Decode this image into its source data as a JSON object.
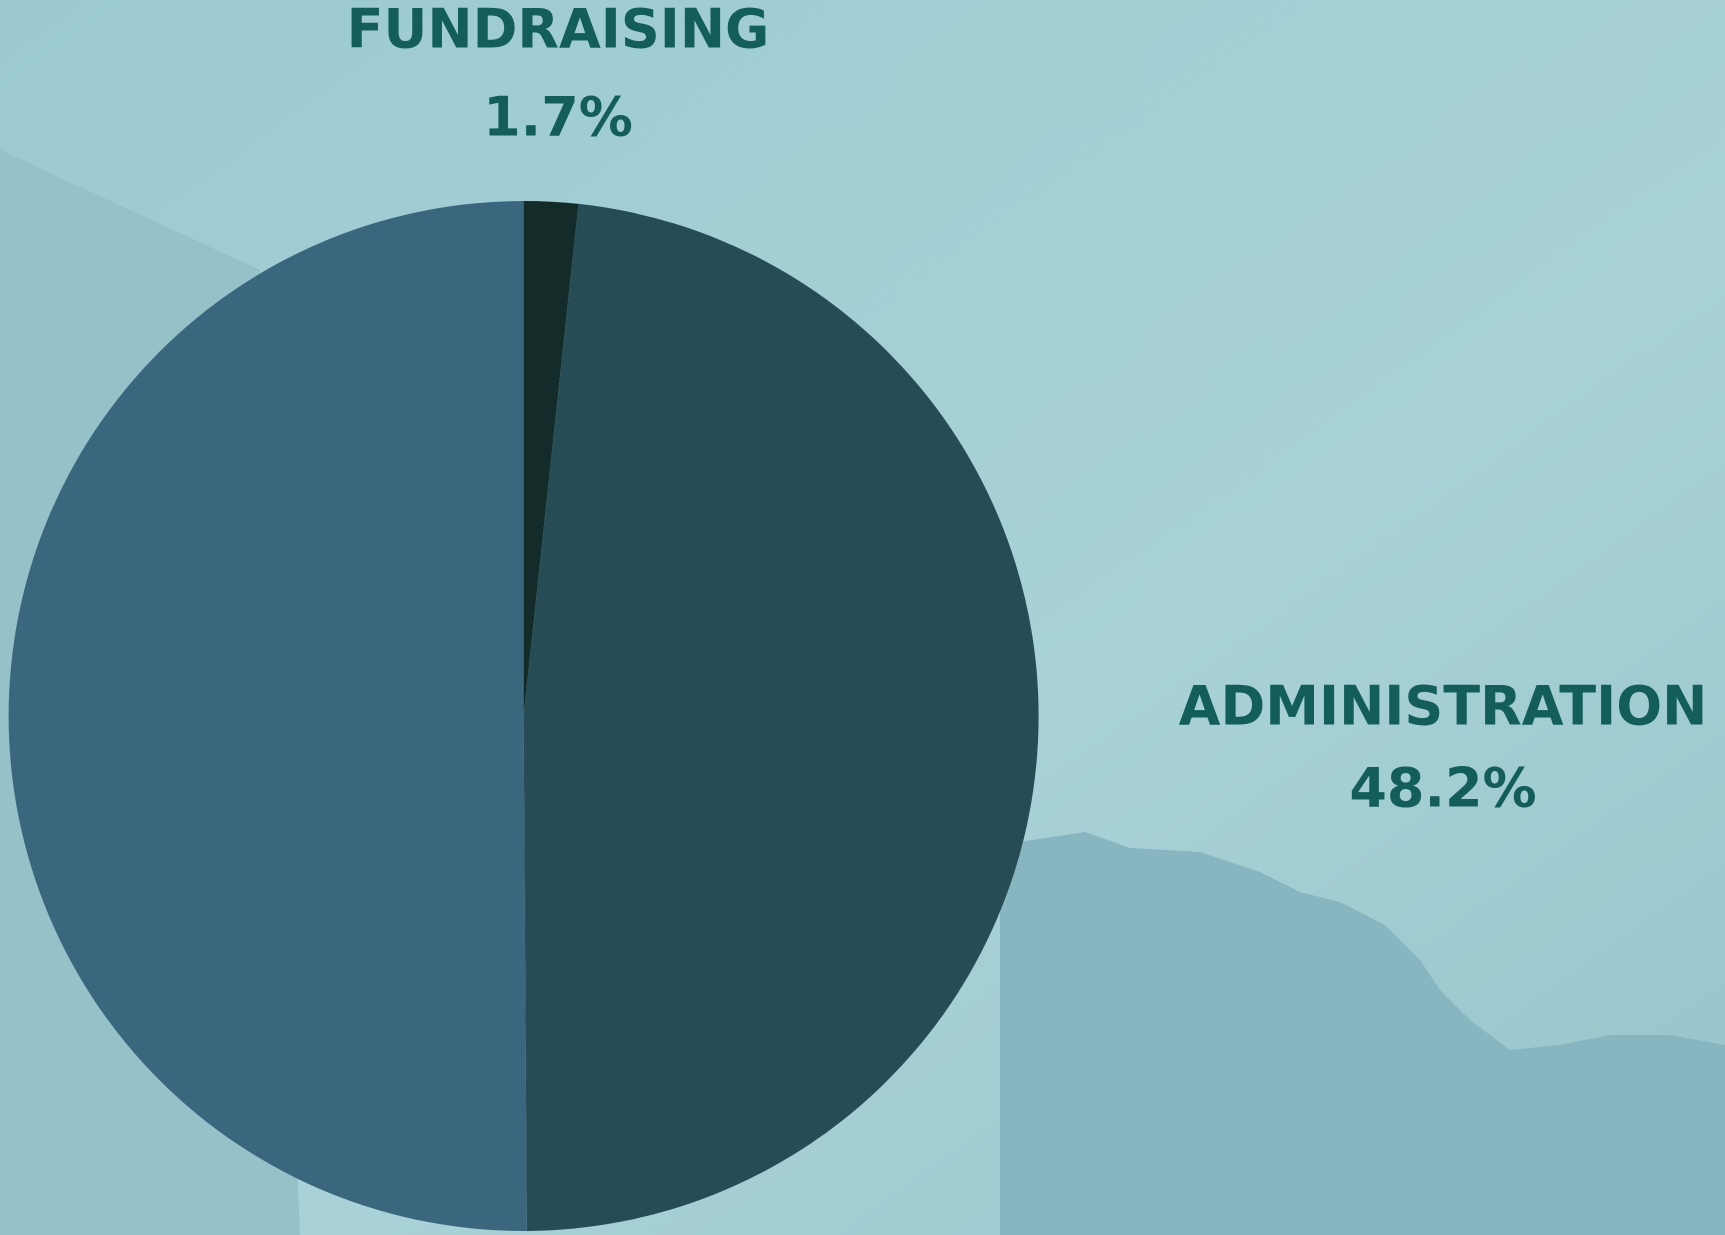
{
  "chart_data": {
    "type": "pie",
    "categories": [
      "FUNDRAISING",
      "ADMINISTRATION",
      null
    ],
    "values": [
      1.7,
      48.2,
      50.1
    ],
    "value_labels": [
      "1.7%",
      "48.2%",
      null
    ],
    "colors": [
      "#132c29",
      "#264c55",
      "#3b677e"
    ]
  }
}
